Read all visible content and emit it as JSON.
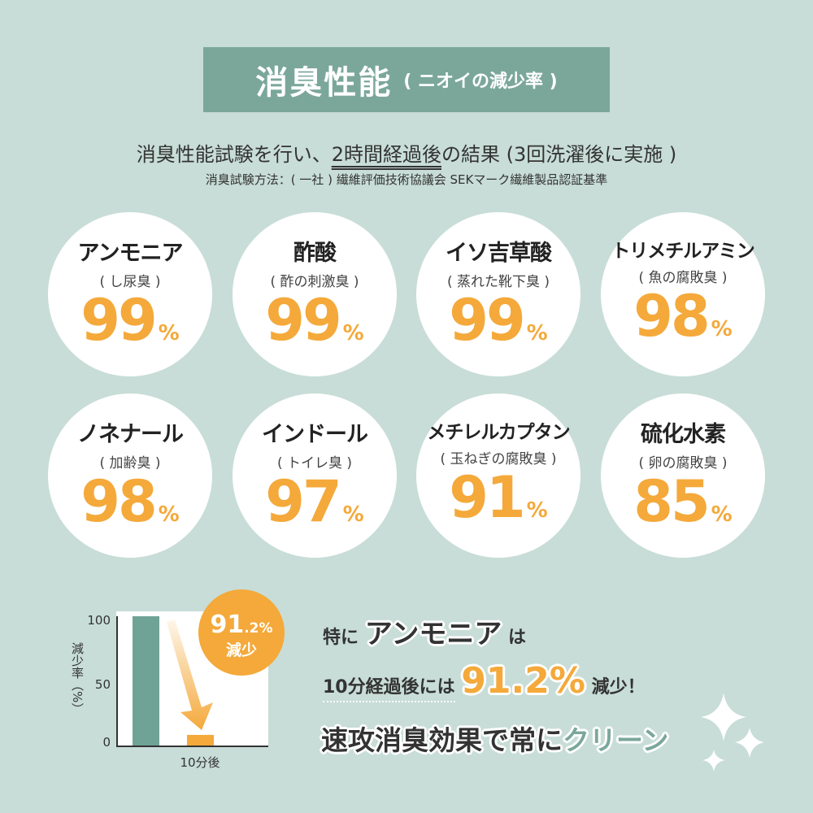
{
  "header": {
    "title": "消臭性能",
    "title_sub": "( ニオイの減少率 )"
  },
  "subtitle": {
    "before": "消臭性能試験を行い、",
    "underlined": "2時間経過後",
    "after": "の結果 (3回洗濯後に実施 )"
  },
  "method": "消臭試験方法：( 一社 ) 繊維評価技術協議会 SEKマーク繊維製品認証基準",
  "odors": [
    {
      "name": "アンモニア",
      "desc": "( し尿臭 )",
      "value": "99",
      "unit": "%"
    },
    {
      "name": "酢酸",
      "desc": "( 酢の刺激臭 )",
      "value": "99",
      "unit": "%"
    },
    {
      "name": "イソ吉草酸",
      "desc": "( 蒸れた靴下臭 )",
      "value": "99",
      "unit": "%"
    },
    {
      "name": "トリメチルアミン",
      "desc": "( 魚の腐敗臭 )",
      "value": "98",
      "unit": "%"
    },
    {
      "name": "ノネナール",
      "desc": "( 加齢臭 )",
      "value": "98",
      "unit": "%"
    },
    {
      "name": "インドール",
      "desc": "( トイレ臭 )",
      "value": "97",
      "unit": "%"
    },
    {
      "name": "メチレルカプタン",
      "desc": "( 玉ねぎの腐敗臭 )",
      "value": "91",
      "unit": "%"
    },
    {
      "name": "硫化水素",
      "desc": "( 卵の腐敗臭 )",
      "value": "85",
      "unit": "%"
    }
  ],
  "chart_data": {
    "type": "bar",
    "ylabel": "減少率（%）",
    "ylim": [
      0,
      100
    ],
    "yticks": [
      "100",
      "50",
      "0"
    ],
    "categories": [
      "",
      "10分後"
    ],
    "values": [
      100,
      8.8
    ],
    "colors": [
      "#6fa396",
      "#f4a93a"
    ],
    "badge": {
      "value": "91",
      "decimal": ".2%",
      "label": "減少"
    }
  },
  "highlight": {
    "line1_pre": "特に",
    "line1_em": "アンモニア",
    "line1_post": "は",
    "line2_pre": "10分経過後には",
    "line2_em": "91.2%",
    "line2_post": "減少！",
    "line3_pre": "速攻消臭効果で常に",
    "line3_em": "クリーン"
  },
  "colors": {
    "background": "#c8ddd7",
    "accent": "#7ba79a",
    "orange": "#f4a93a"
  }
}
